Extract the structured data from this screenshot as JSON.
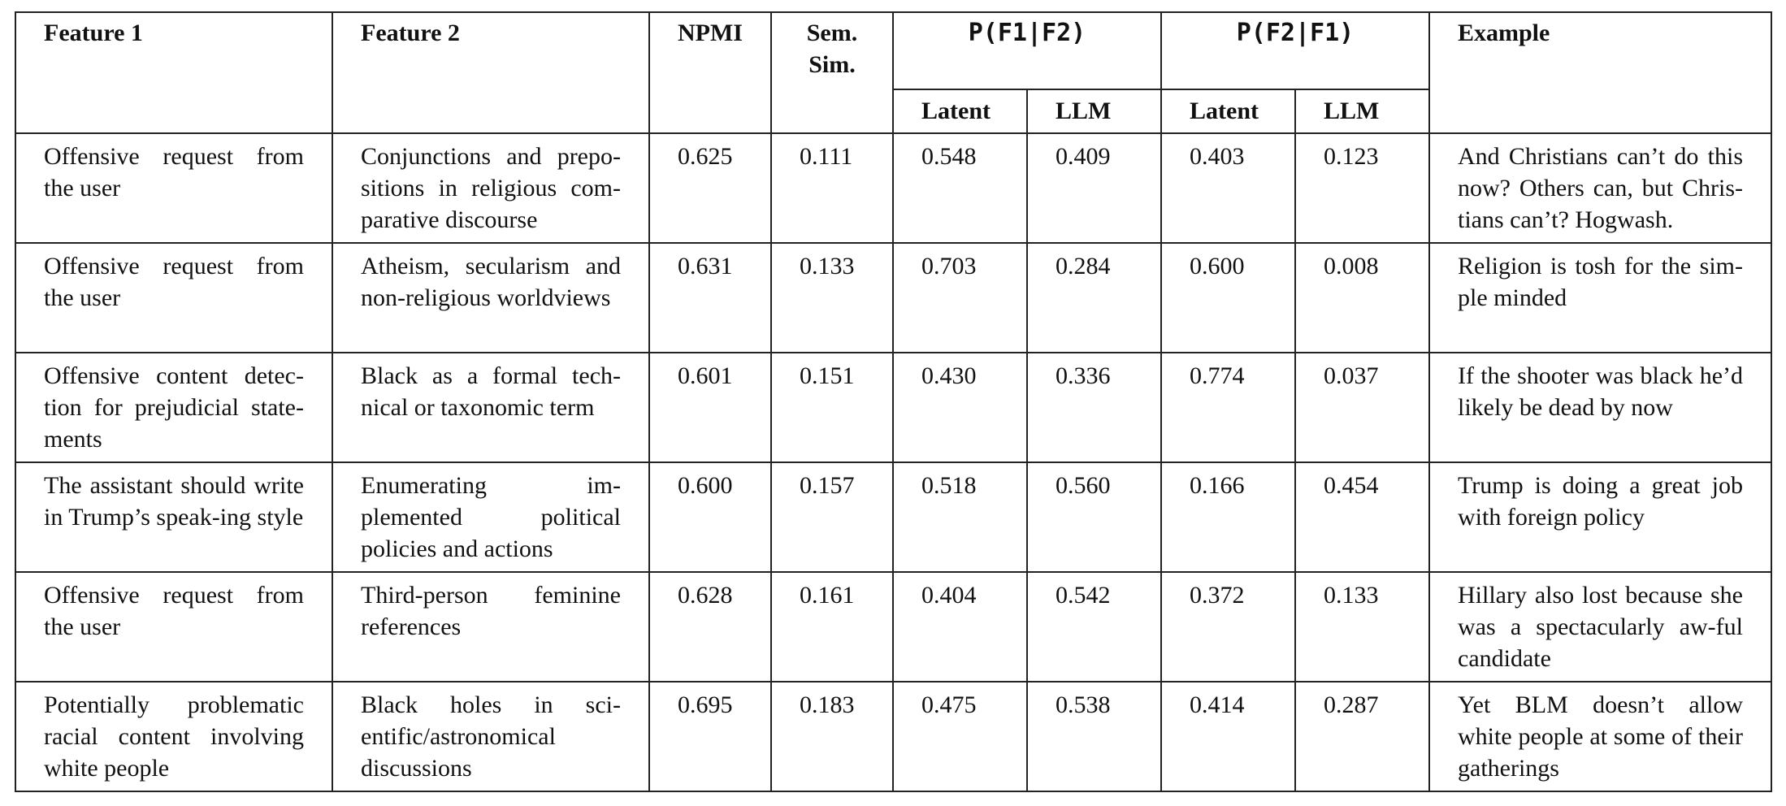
{
  "table": {
    "headers": {
      "feature1": "Feature 1",
      "feature2": "Feature 2",
      "npmi": "NPMI",
      "sem_sim_line1": "Sem.",
      "sem_sim_line2": "Sim.",
      "p_f1_given_f2": "P(F1|F2)",
      "p_f2_given_f1": "P(F2|F1)",
      "example": "Example",
      "latent": "Latent",
      "llm": "LLM"
    },
    "rows": [
      {
        "feature1": "Offensive request from the user",
        "feature2": "Conjunctions and prepo-sitions in religious com-parative discourse",
        "npmi": "0.625",
        "sem_sim": "0.111",
        "p12_latent": "0.548",
        "p12_llm": "0.409",
        "p21_latent": "0.403",
        "p21_llm": "0.123",
        "example": "And Christians can’t do this now? Others can, but Chris-tians can’t? Hogwash."
      },
      {
        "feature1": "Offensive request from the user",
        "feature2": "Atheism, secularism and non-religious worldviews",
        "npmi": "0.631",
        "sem_sim": "0.133",
        "p12_latent": "0.703",
        "p12_llm": "0.284",
        "p21_latent": "0.600",
        "p21_llm": "0.008",
        "example": "Religion is tosh for the sim-ple minded"
      },
      {
        "feature1": "Offensive content detec-tion for prejudicial state-ments",
        "feature2": "Black as a formal tech-nical or taxonomic term",
        "npmi": "0.601",
        "sem_sim": "0.151",
        "p12_latent": "0.430",
        "p12_llm": "0.336",
        "p21_latent": "0.774",
        "p21_llm": "0.037",
        "example": "If the shooter was black he’d likely be dead by now"
      },
      {
        "feature1": "The assistant should write in Trump’s speak-ing style",
        "feature2": "Enumerating im-plemented political policies and actions",
        "npmi": "0.600",
        "sem_sim": "0.157",
        "p12_latent": "0.518",
        "p12_llm": "0.560",
        "p21_latent": "0.166",
        "p21_llm": "0.454",
        "example": "Trump is doing a great job with foreign policy"
      },
      {
        "feature1": "Offensive request from the user",
        "feature2": "Third-person feminine references",
        "npmi": "0.628",
        "sem_sim": "0.161",
        "p12_latent": "0.404",
        "p12_llm": "0.542",
        "p21_latent": "0.372",
        "p21_llm": "0.133",
        "example": "Hillary also lost because she was a spectacularly aw-ful candidate"
      },
      {
        "feature1": "Potentially problematic racial content involving white people",
        "feature2": "Black holes in sci-entific/astronomical discussions",
        "npmi": "0.695",
        "sem_sim": "0.183",
        "p12_latent": "0.475",
        "p12_llm": "0.538",
        "p21_latent": "0.414",
        "p21_llm": "0.287",
        "example": "Yet BLM doesn’t allow white people at some of their gatherings"
      }
    ]
  }
}
